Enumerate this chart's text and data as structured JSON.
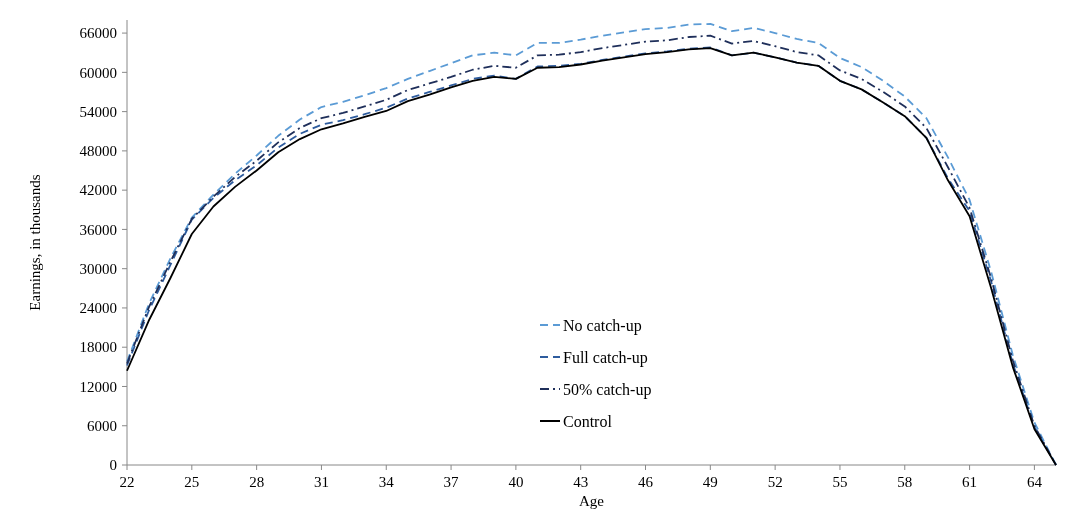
{
  "chart_data": {
    "type": "line",
    "xlabel": "Age",
    "ylabel": "Earnings, in thousands",
    "xlim": [
      22,
      65
    ],
    "xticks": [
      22,
      25,
      28,
      31,
      34,
      37,
      40,
      43,
      46,
      49,
      52,
      55,
      58,
      61,
      64
    ],
    "ylim": [
      0,
      68000
    ],
    "yticks": [
      0,
      6000,
      12000,
      18000,
      24000,
      30000,
      36000,
      42000,
      48000,
      54000,
      60000,
      66000
    ],
    "grid": false,
    "legend": "bottom",
    "marker": "none",
    "x": [
      22,
      23,
      24,
      25,
      26,
      27,
      28,
      29,
      30,
      31,
      32,
      33,
      34,
      35,
      36,
      37,
      38,
      39,
      40,
      41,
      42,
      43,
      44,
      45,
      46,
      47,
      48,
      49,
      50,
      51,
      52,
      53,
      54,
      55,
      56,
      57,
      58,
      59,
      60,
      61,
      62,
      63,
      64,
      65
    ],
    "series": [
      {
        "name": "No catch-up",
        "color": "#5b9bd5",
        "line_style": "dashed",
        "values": [
          15800,
          24500,
          31500,
          37800,
          41300,
          44500,
          47300,
          50300,
          52800,
          54700,
          55500,
          56500,
          57600,
          59000,
          60200,
          61400,
          62600,
          63000,
          62600,
          64500,
          64500,
          65000,
          65600,
          66100,
          66600,
          66800,
          67300,
          67400,
          66300,
          66800,
          66000,
          65100,
          64500,
          62200,
          60800,
          58700,
          56300,
          53000,
          47000,
          40500,
          29500,
          16800,
          6500,
          0
        ]
      },
      {
        "name": "Full catch-up",
        "color": "#2e5c9e",
        "line_style": "dashed",
        "values": [
          15200,
          23500,
          30500,
          37500,
          40800,
          43500,
          45800,
          48500,
          50600,
          52000,
          52700,
          53600,
          54600,
          56000,
          57000,
          58000,
          59000,
          59500,
          59000,
          60900,
          61000,
          61300,
          61900,
          62400,
          62900,
          63200,
          63600,
          63800,
          62600,
          63000,
          62300,
          61500,
          61000,
          58700,
          57400,
          55400,
          53300,
          50000,
          43800,
          38800,
          28000,
          15500,
          5800,
          0
        ]
      },
      {
        "name": "50% catch-up",
        "color": "#1f2f5a",
        "line_style": "dashdot",
        "values": [
          15500,
          24000,
          31000,
          37600,
          41000,
          44000,
          46500,
          49300,
          51500,
          53000,
          53800,
          54800,
          55800,
          57300,
          58300,
          59300,
          60400,
          61000,
          60700,
          62600,
          62700,
          63100,
          63700,
          64200,
          64700,
          64900,
          65400,
          65600,
          64400,
          64800,
          64000,
          63100,
          62600,
          60300,
          59000,
          57000,
          54800,
          51500,
          45500,
          39300,
          28500,
          16000,
          6000,
          0
        ]
      },
      {
        "name": "Control",
        "color": "#000000",
        "line_style": "solid",
        "values": [
          14400,
          22000,
          28500,
          35300,
          39500,
          42500,
          45000,
          47800,
          49800,
          51300,
          52200,
          53200,
          54100,
          55600,
          56600,
          57700,
          58700,
          59300,
          59000,
          60700,
          60800,
          61200,
          61800,
          62300,
          62800,
          63100,
          63500,
          63700,
          62600,
          63000,
          62300,
          61500,
          61000,
          58700,
          57400,
          55400,
          53300,
          50000,
          43500,
          38000,
          27000,
          15000,
          5500,
          0
        ]
      }
    ]
  }
}
